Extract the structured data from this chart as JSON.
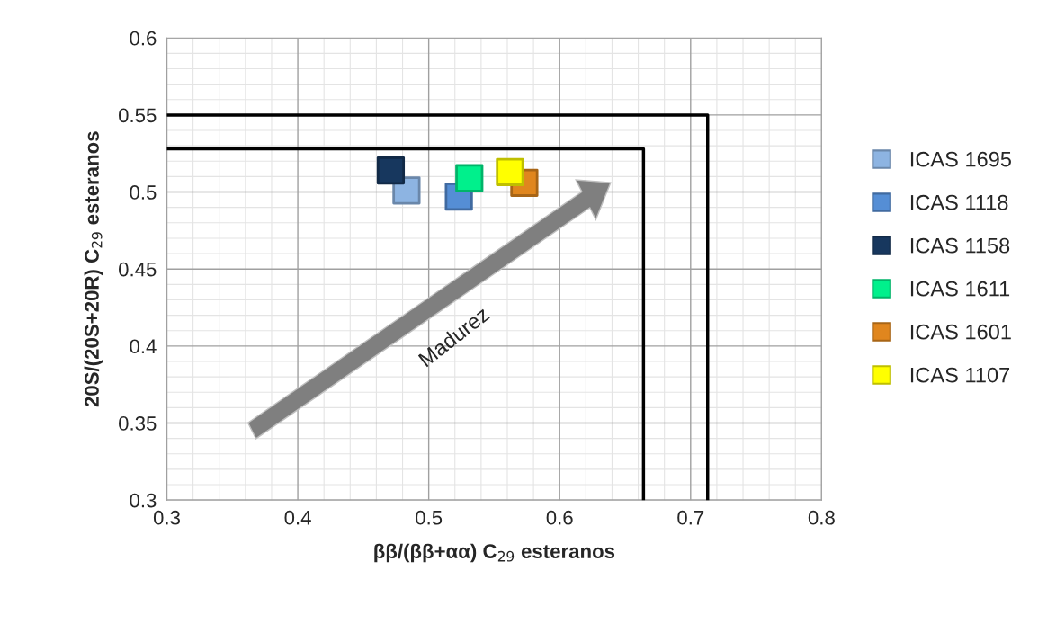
{
  "chart_data": {
    "type": "scatter",
    "xlabel": "ββ/(ββ+αα) C$_{29}$ esteranos",
    "ylabel": "20S/(20S+20R) C$_{29}$ esteranos",
    "xlim": [
      0.3,
      0.8
    ],
    "xticks": [
      0.3,
      0.4,
      0.5,
      0.6,
      0.7,
      0.8
    ],
    "ylim": [
      0.3,
      0.6
    ],
    "yticks": [
      0.3,
      0.35,
      0.4,
      0.45,
      0.5,
      0.55,
      0.6
    ],
    "grid": true,
    "legend": "right",
    "marker": "square",
    "series": [
      {
        "name": "ICAS 1695",
        "color": "#8db4e2",
        "x": [
          0.483
        ],
        "values": [
          0.501
        ]
      },
      {
        "name": "ICAS 1118",
        "color": "#558ed5",
        "x": [
          0.523
        ],
        "values": [
          0.497
        ]
      },
      {
        "name": "ICAS 1158",
        "color": "#17375e",
        "x": [
          0.471
        ],
        "values": [
          0.514
        ]
      },
      {
        "name": "ICAS 1611",
        "color": "#00f08c",
        "x": [
          0.531
        ],
        "values": [
          0.509
        ]
      },
      {
        "name": "ICAS 1601",
        "color": "#e0861e",
        "x": [
          0.573
        ],
        "values": [
          0.506
        ]
      },
      {
        "name": "ICAS 1107",
        "color": "#ffff00",
        "x": [
          0.562
        ],
        "values": [
          0.513
        ]
      },
      {
        "type": "line",
        "marker": "none",
        "color": "#000000",
        "x": [
          0.3,
          0.713,
          0.713
        ],
        "values": [
          0.55,
          0.55,
          0.3
        ]
      },
      {
        "type": "line",
        "marker": "none",
        "color": "#000000",
        "x": [
          0.3,
          0.664,
          0.664
        ],
        "values": [
          0.528,
          0.528,
          0.3
        ]
      }
    ],
    "annotations": [
      "Madurez"
    ]
  }
}
